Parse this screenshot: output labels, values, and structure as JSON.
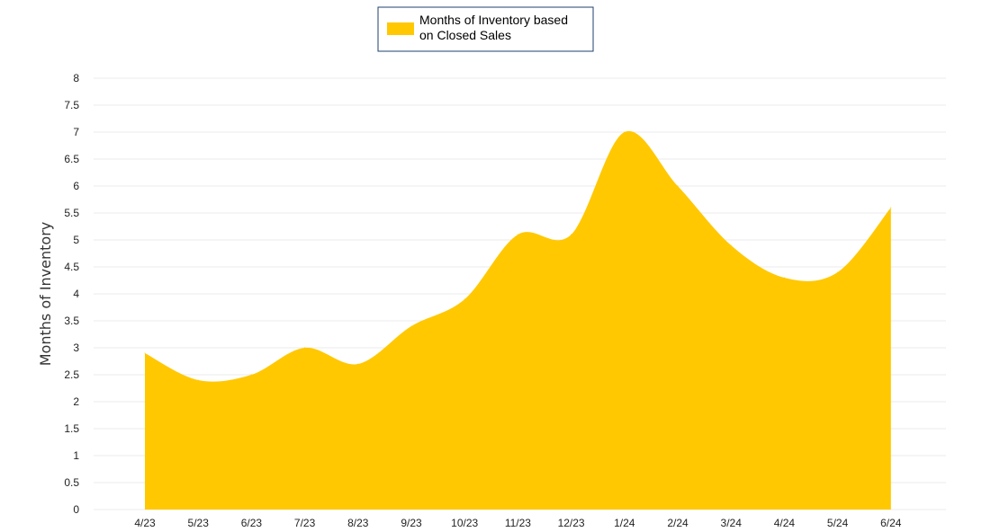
{
  "chart_data": {
    "type": "area",
    "categories": [
      "4/23",
      "5/23",
      "6/23",
      "7/23",
      "8/23",
      "9/23",
      "10/23",
      "11/23",
      "12/23",
      "1/24",
      "2/24",
      "3/24",
      "4/24",
      "5/24",
      "6/24"
    ],
    "series": [
      {
        "name": "Months of Inventory based on Closed Sales",
        "values": [
          2.9,
          2.4,
          2.5,
          3.0,
          2.7,
          3.4,
          3.9,
          5.1,
          5.1,
          7.0,
          6.0,
          4.9,
          4.3,
          4.4,
          5.6
        ],
        "color": "#FFC800"
      }
    ],
    "legend": {
      "position": "top-center",
      "lines": [
        "Months of Inventory based",
        "on Closed Sales"
      ]
    },
    "ylabel": "Months of Inventory",
    "xlabel": "",
    "ylim": [
      0,
      8
    ],
    "yticks": [
      "0",
      "0.5",
      "1",
      "1.5",
      "2",
      "2.5",
      "3",
      "3.5",
      "4",
      "4.5",
      "5",
      "5.5",
      "6",
      "6.5",
      "7",
      "7.5",
      "8"
    ],
    "grid": true
  }
}
